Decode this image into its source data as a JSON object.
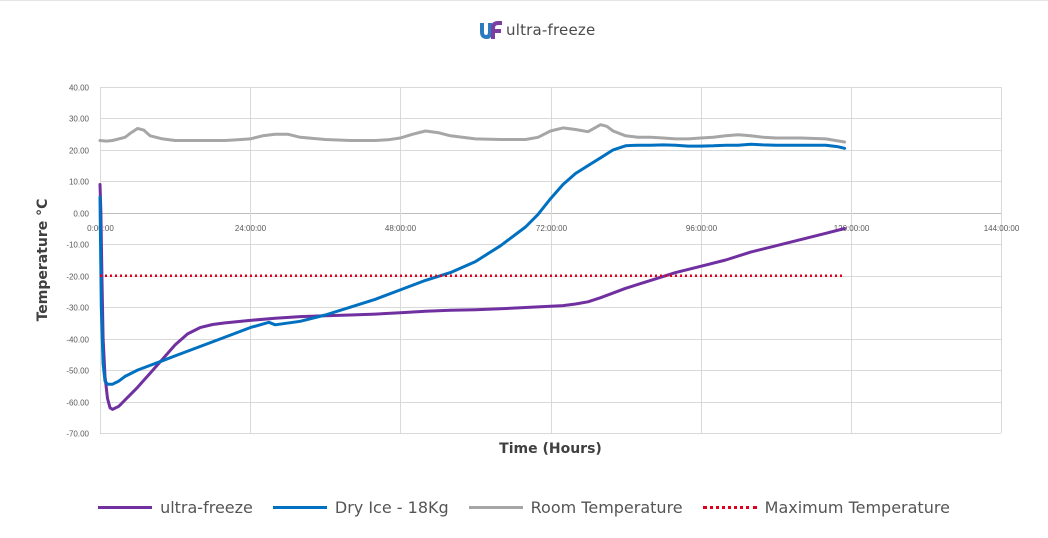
{
  "brand": {
    "logo_mark": "uf",
    "name": "ultra-freeze",
    "colors": {
      "u": "#2a7bbf",
      "f": "#7a3fa0"
    }
  },
  "chart_data": {
    "type": "line",
    "ylabel": "Temperature °C",
    "xlabel": "Time (Hours)",
    "ylim": [
      -70,
      40
    ],
    "xlim": [
      0,
      144
    ],
    "y_ticks": [
      "40.00",
      "30.00",
      "20.00",
      "10.00",
      "0.00",
      "-10.00",
      "-20.00",
      "-30.00",
      "-40.00",
      "-50.00",
      "-60.00",
      "-70.00"
    ],
    "y_tick_values": [
      40,
      30,
      20,
      10,
      0,
      -10,
      -20,
      -30,
      -40,
      -50,
      -60,
      -70
    ],
    "x_ticks": [
      "0:00:00",
      "24:00:00",
      "48:00:00",
      "72:00:00",
      "96:00:00",
      "120:00:00",
      "144:00:00"
    ],
    "x_tick_values": [
      0,
      24,
      48,
      72,
      96,
      120,
      144
    ],
    "grid": true,
    "legend_position": "bottom",
    "series": [
      {
        "name": "ultra-freeze",
        "color": "#7030a0",
        "style": "solid",
        "x": [
          0,
          0.15,
          0.3,
          0.5,
          0.8,
          1.2,
          1.6,
          2.0,
          3.0,
          4.0,
          6.0,
          8.0,
          10.0,
          12.0,
          14.0,
          16.0,
          18.0,
          20.0,
          24.0,
          28.0,
          32.0,
          36.0,
          40.0,
          44.0,
          48.0,
          52.0,
          56.0,
          60.0,
          64.0,
          68.0,
          70.0,
          74.0,
          76.0,
          78.0,
          80.0,
          84.0,
          88.0,
          92.0,
          96.0,
          100.0,
          104.0,
          108.0,
          112.0,
          116.0,
          119.0
        ],
        "values": [
          9.0,
          0.0,
          -20.0,
          -40.0,
          -52.0,
          -59.0,
          -62.0,
          -62.5,
          -61.5,
          -59.5,
          -55.5,
          -51.0,
          -46.5,
          -42.0,
          -38.5,
          -36.5,
          -35.5,
          -35.0,
          -34.2,
          -33.5,
          -33.0,
          -32.7,
          -32.5,
          -32.2,
          -31.8,
          -31.3,
          -31.0,
          -30.8,
          -30.5,
          -30.1,
          -29.9,
          -29.5,
          -29.0,
          -28.3,
          -27.0,
          -24.0,
          -21.5,
          -19.0,
          -17.0,
          -15.0,
          -12.5,
          -10.5,
          -8.5,
          -6.5,
          -5.0
        ]
      },
      {
        "name": "Dry Ice - 18Kg",
        "color": "#0070c0",
        "style": "solid",
        "x": [
          0,
          0.2,
          0.5,
          0.8,
          1.2,
          2.0,
          3.0,
          4.0,
          6.0,
          8.0,
          10.0,
          12.0,
          16.0,
          20.0,
          24.0,
          27.0,
          28.0,
          32.0,
          36.0,
          40.0,
          44.0,
          48.0,
          52.0,
          56.0,
          60.0,
          64.0,
          68.0,
          70.0,
          72.0,
          74.0,
          76.0,
          78.0,
          80.0,
          82.0,
          84.0,
          86.0,
          88.0,
          90.0,
          92.0,
          94.0,
          96.0,
          98.0,
          100.0,
          102.0,
          104.0,
          106.0,
          108.0,
          110.0,
          112.0,
          114.0,
          116.0,
          118.0,
          119.0
        ],
        "values": [
          5.0,
          -30.0,
          -48.0,
          -53.5,
          -54.5,
          -54.5,
          -53.5,
          -52.0,
          -50.0,
          -48.5,
          -47.0,
          -45.5,
          -42.5,
          -39.5,
          -36.5,
          -34.8,
          -35.6,
          -34.5,
          -32.5,
          -30.0,
          -27.5,
          -24.5,
          -21.5,
          -19.0,
          -15.5,
          -10.5,
          -4.5,
          -0.5,
          4.5,
          9.0,
          12.5,
          15.0,
          17.5,
          20.0,
          21.3,
          21.5,
          21.5,
          21.6,
          21.5,
          21.2,
          21.2,
          21.3,
          21.5,
          21.5,
          21.8,
          21.6,
          21.5,
          21.5,
          21.5,
          21.5,
          21.5,
          21.0,
          20.5
        ]
      },
      {
        "name": "Room Temperature",
        "color": "#a6a6a6",
        "style": "solid",
        "x": [
          0,
          1.0,
          2.0,
          4.0,
          5.0,
          6.0,
          7.0,
          8.0,
          10.0,
          12.0,
          16.0,
          20.0,
          22.0,
          24.0,
          26.0,
          28.0,
          30.0,
          32.0,
          36.0,
          40.0,
          44.0,
          46.0,
          48.0,
          50.0,
          52.0,
          54.0,
          56.0,
          60.0,
          64.0,
          68.0,
          70.0,
          72.0,
          74.0,
          76.0,
          78.0,
          80.0,
          81.0,
          82.0,
          84.0,
          86.0,
          88.0,
          90.0,
          92.0,
          94.0,
          96.0,
          98.0,
          100.0,
          102.0,
          104.0,
          106.0,
          108.0,
          112.0,
          116.0,
          119.0
        ],
        "values": [
          23.0,
          22.8,
          23.0,
          24.0,
          25.5,
          26.8,
          26.3,
          24.5,
          23.5,
          23.0,
          23.0,
          23.0,
          23.2,
          23.5,
          24.5,
          25.0,
          25.0,
          24.0,
          23.3,
          23.0,
          23.0,
          23.2,
          23.8,
          25.0,
          26.0,
          25.5,
          24.5,
          23.5,
          23.3,
          23.3,
          24.0,
          26.0,
          27.0,
          26.5,
          25.8,
          28.0,
          27.5,
          26.0,
          24.5,
          24.0,
          24.0,
          23.8,
          23.5,
          23.5,
          23.8,
          24.0,
          24.5,
          24.8,
          24.5,
          24.0,
          23.8,
          23.8,
          23.5,
          22.5
        ]
      },
      {
        "name": "Maximum Temperature",
        "color": "#e0001b",
        "style": "dotted",
        "x": [
          0,
          119.0
        ],
        "values": [
          -20,
          -20
        ]
      }
    ]
  }
}
